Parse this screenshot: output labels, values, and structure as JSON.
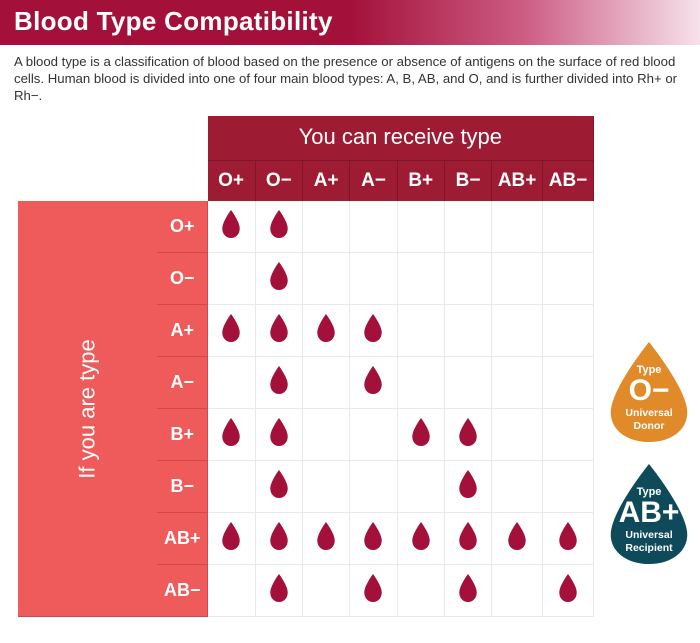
{
  "title": "Blood Type Compatibility",
  "description": "A blood type is a classification of blood based on the presence or absence of antigens on the surface of red blood cells. Human blood is divided into one of four main blood types: A, B, AB, and O, and is further divided into Rh+ or Rh−.",
  "chart": {
    "type": "table",
    "receive_header": "You can receive type",
    "iftype_header": "If you are type",
    "columns": [
      "O+",
      "O−",
      "A+",
      "A−",
      "B+",
      "B−",
      "AB+",
      "AB−"
    ],
    "rows": [
      "O+",
      "O−",
      "A+",
      "A−",
      "B+",
      "B−",
      "AB+",
      "AB−"
    ],
    "matrix": [
      [
        1,
        1,
        0,
        0,
        0,
        0,
        0,
        0
      ],
      [
        0,
        1,
        0,
        0,
        0,
        0,
        0,
        0
      ],
      [
        1,
        1,
        1,
        1,
        0,
        0,
        0,
        0
      ],
      [
        0,
        1,
        0,
        1,
        0,
        0,
        0,
        0
      ],
      [
        1,
        1,
        0,
        0,
        1,
        1,
        0,
        0
      ],
      [
        0,
        1,
        0,
        0,
        0,
        1,
        0,
        0
      ],
      [
        1,
        1,
        1,
        1,
        1,
        1,
        1,
        1
      ],
      [
        0,
        1,
        0,
        1,
        0,
        1,
        0,
        1
      ]
    ],
    "colors": {
      "title_gradient_from": "#a3113a",
      "title_gradient_to": "#f6e2eb",
      "receive_header_bg": "#9d1c34",
      "receive_header_border": "#7e1528",
      "iftype_header_bg": "#ef5a5a",
      "iftype_header_border": "#d24747",
      "cell_border": "#e9e9e9",
      "drop_fill": "#a3113a",
      "background": "#ffffff",
      "text": "#333333",
      "header_text": "#ffffff"
    },
    "cell_size": {
      "w": 55,
      "h": 52
    },
    "font": {
      "title_size": 26,
      "desc_size": 13.2,
      "header_size": 22,
      "col_label_size": 19,
      "row_label_size": 18
    }
  },
  "badges": [
    {
      "type_label": "Type",
      "big": "O−",
      "sub1": "Universal",
      "sub2": "Donor",
      "fill": "#e08a2a"
    },
    {
      "type_label": "Type",
      "big": "AB+",
      "sub1": "Universal",
      "sub2": "Recipient",
      "fill": "#0e4a5a"
    }
  ]
}
